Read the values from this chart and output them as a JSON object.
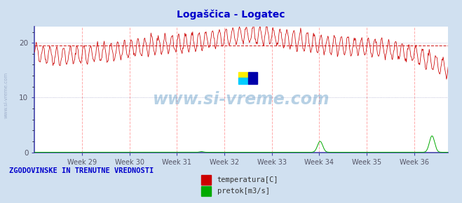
{
  "title": "Logaščica - Logatec",
  "title_color": "#0000cc",
  "bg_color": "#d0e0f0",
  "plot_bg_color": "#ffffff",
  "grid_color_h": "#aaaacc",
  "grid_color_v": "#ffaaaa",
  "ylabel_ticks": [
    0,
    10,
    20
  ],
  "ylim": [
    0,
    23
  ],
  "xlim_weeks": [
    28.0,
    36.72
  ],
  "week_ticks": [
    29,
    30,
    31,
    32,
    33,
    34,
    35,
    36
  ],
  "temp_color": "#cc0000",
  "flow_color": "#00aa00",
  "avg_line_color": "#cc0000",
  "avg_line_value": 19.5,
  "watermark_text": "www.si-vreme.com",
  "watermark_color": "#4488bb",
  "watermark_alpha": 0.38,
  "legend_label1": "temperatura[C]",
  "legend_label2": "pretok[m3/s]",
  "legend_color1": "#cc0000",
  "legend_color2": "#00aa00",
  "bottom_text": "ZGODOVINSKE IN TRENUTNE VREDNOSTI",
  "bottom_text_color": "#0000cc",
  "axis_color": "#4444aa",
  "tick_color": "#555566",
  "n_points": 744
}
